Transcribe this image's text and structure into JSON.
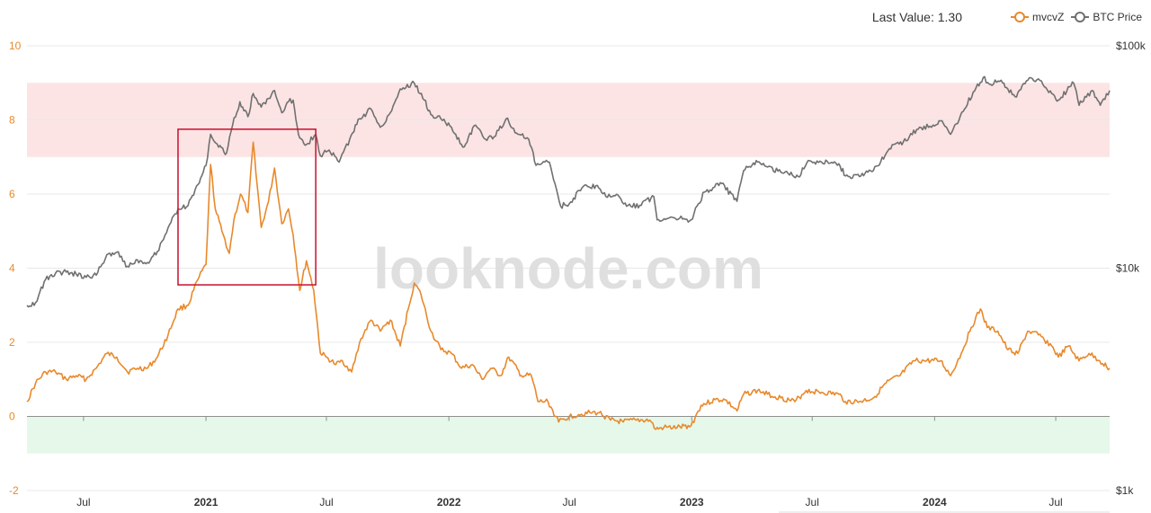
{
  "header": {
    "last_value_text": "Last Value: 1.30"
  },
  "legend": [
    {
      "name": "mvcvZ",
      "color": "#e8892b"
    },
    {
      "name": "BTC Price",
      "color": "#707070"
    }
  ],
  "watermark": "looknode.com",
  "colors": {
    "mvcvz": "#e8892b",
    "btc": "#707070",
    "red_band": "#fce4e4",
    "green_band": "#e5f8ea",
    "highlight_box": "#c8102e",
    "grid": "#e8e8e8",
    "zero_line": "#8f8f8f",
    "left_axis_text": "#e8892b",
    "right_axis_text": "#333333"
  },
  "chart_data": {
    "type": "line",
    "x_axis": {
      "type": "date",
      "range": [
        "2020-04-07",
        "2024-09-20"
      ],
      "ticks": [
        {
          "date": "2020-07-01",
          "label": "Jul",
          "bold": false
        },
        {
          "date": "2021-01-01",
          "label": "2021",
          "bold": true
        },
        {
          "date": "2021-07-01",
          "label": "Jul",
          "bold": false
        },
        {
          "date": "2022-01-01",
          "label": "2022",
          "bold": true
        },
        {
          "date": "2022-07-01",
          "label": "Jul",
          "bold": false
        },
        {
          "date": "2023-01-01",
          "label": "2023",
          "bold": true
        },
        {
          "date": "2023-07-01",
          "label": "Jul",
          "bold": false
        },
        {
          "date": "2024-01-01",
          "label": "2024",
          "bold": true
        },
        {
          "date": "2024-07-01",
          "label": "Jul",
          "bold": false
        }
      ]
    },
    "y_left": {
      "range": [
        -2,
        10
      ],
      "ticks": [
        {
          "value": -2,
          "label": "-2"
        },
        {
          "value": 0,
          "label": "0"
        },
        {
          "value": 2,
          "label": "2"
        },
        {
          "value": 4,
          "label": "4"
        },
        {
          "value": 6,
          "label": "6"
        },
        {
          "value": 8,
          "label": "8"
        },
        {
          "value": 10,
          "label": "10"
        }
      ]
    },
    "y_right": {
      "scale": "log",
      "range": [
        1000,
        100000
      ],
      "ticks": [
        {
          "value": 1000,
          "label": "$1k"
        },
        {
          "value": 10000,
          "label": "$10k"
        },
        {
          "value": 100000,
          "label": "$100k"
        }
      ]
    },
    "bands": [
      {
        "axis": "left",
        "from": 7,
        "to": 9,
        "color": "red"
      },
      {
        "axis": "left",
        "from": -1,
        "to": 0,
        "color": "green"
      }
    ],
    "highlight_box": {
      "x_from": "2020-11-20",
      "x_to": "2021-06-15",
      "y_from": 3.55,
      "y_to": 7.75
    },
    "series": [
      {
        "name": "mvcvZ",
        "axis": "left",
        "points": [
          [
            "2020-04-07",
            0.4
          ],
          [
            "2020-04-20",
            0.9
          ],
          [
            "2020-05-05",
            1.2
          ],
          [
            "2020-05-20",
            1.2
          ],
          [
            "2020-06-05",
            1.0
          ],
          [
            "2020-06-20",
            1.1
          ],
          [
            "2020-07-05",
            1.0
          ],
          [
            "2020-07-20",
            1.3
          ],
          [
            "2020-08-05",
            1.7
          ],
          [
            "2020-08-20",
            1.6
          ],
          [
            "2020-09-05",
            1.2
          ],
          [
            "2020-09-20",
            1.3
          ],
          [
            "2020-10-05",
            1.3
          ],
          [
            "2020-10-20",
            1.6
          ],
          [
            "2020-11-05",
            2.2
          ],
          [
            "2020-11-20",
            2.9
          ],
          [
            "2020-12-05",
            3.0
          ],
          [
            "2020-12-20",
            3.7
          ],
          [
            "2021-01-01",
            4.1
          ],
          [
            "2021-01-08",
            6.8
          ],
          [
            "2021-01-15",
            5.6
          ],
          [
            "2021-01-25",
            5.0
          ],
          [
            "2021-02-05",
            4.4
          ],
          [
            "2021-02-12",
            5.3
          ],
          [
            "2021-02-22",
            6.0
          ],
          [
            "2021-03-05",
            5.5
          ],
          [
            "2021-03-13",
            7.4
          ],
          [
            "2021-03-25",
            5.1
          ],
          [
            "2021-04-05",
            5.8
          ],
          [
            "2021-04-14",
            6.7
          ],
          [
            "2021-04-25",
            5.2
          ],
          [
            "2021-05-05",
            5.6
          ],
          [
            "2021-05-12",
            4.9
          ],
          [
            "2021-05-22",
            3.4
          ],
          [
            "2021-06-01",
            4.2
          ],
          [
            "2021-06-12",
            3.4
          ],
          [
            "2021-06-22",
            1.7
          ],
          [
            "2021-07-01",
            1.6
          ],
          [
            "2021-07-15",
            1.4
          ],
          [
            "2021-07-25",
            1.5
          ],
          [
            "2021-08-08",
            1.2
          ],
          [
            "2021-08-22",
            2.1
          ],
          [
            "2021-09-06",
            2.6
          ],
          [
            "2021-09-20",
            2.3
          ],
          [
            "2021-10-05",
            2.6
          ],
          [
            "2021-10-20",
            1.9
          ],
          [
            "2021-11-01",
            2.9
          ],
          [
            "2021-11-10",
            3.6
          ],
          [
            "2021-11-20",
            3.3
          ],
          [
            "2021-12-05",
            2.3
          ],
          [
            "2021-12-20",
            1.8
          ],
          [
            "2022-01-05",
            1.7
          ],
          [
            "2022-01-20",
            1.3
          ],
          [
            "2022-02-05",
            1.4
          ],
          [
            "2022-02-20",
            1.0
          ],
          [
            "2022-03-05",
            1.3
          ],
          [
            "2022-03-20",
            1.1
          ],
          [
            "2022-04-01",
            1.6
          ],
          [
            "2022-04-20",
            1.1
          ],
          [
            "2022-05-05",
            1.1
          ],
          [
            "2022-05-15",
            0.4
          ],
          [
            "2022-05-30",
            0.4
          ],
          [
            "2022-06-15",
            -0.15
          ],
          [
            "2022-07-01",
            0.0
          ],
          [
            "2022-07-15",
            0.05
          ],
          [
            "2022-08-01",
            0.1
          ],
          [
            "2022-08-15",
            0.1
          ],
          [
            "2022-09-01",
            -0.1
          ],
          [
            "2022-09-20",
            -0.15
          ],
          [
            "2022-10-10",
            -0.1
          ],
          [
            "2022-10-30",
            -0.1
          ],
          [
            "2022-11-08",
            -0.35
          ],
          [
            "2022-11-20",
            -0.3
          ],
          [
            "2022-12-10",
            -0.3
          ],
          [
            "2022-12-31",
            -0.25
          ],
          [
            "2023-01-15",
            0.3
          ],
          [
            "2023-02-05",
            0.45
          ],
          [
            "2023-02-20",
            0.45
          ],
          [
            "2023-03-10",
            0.15
          ],
          [
            "2023-03-20",
            0.6
          ],
          [
            "2023-04-10",
            0.7
          ],
          [
            "2023-04-25",
            0.6
          ],
          [
            "2023-05-15",
            0.5
          ],
          [
            "2023-06-05",
            0.4
          ],
          [
            "2023-06-22",
            0.7
          ],
          [
            "2023-07-15",
            0.65
          ],
          [
            "2023-08-10",
            0.6
          ],
          [
            "2023-08-20",
            0.4
          ],
          [
            "2023-09-10",
            0.4
          ],
          [
            "2023-10-01",
            0.5
          ],
          [
            "2023-10-20",
            0.9
          ],
          [
            "2023-11-10",
            1.1
          ],
          [
            "2023-12-01",
            1.5
          ],
          [
            "2023-12-20",
            1.5
          ],
          [
            "2024-01-10",
            1.5
          ],
          [
            "2024-01-25",
            1.1
          ],
          [
            "2024-02-10",
            1.7
          ],
          [
            "2024-02-25",
            2.4
          ],
          [
            "2024-03-10",
            2.9
          ],
          [
            "2024-03-20",
            2.4
          ],
          [
            "2024-04-05",
            2.3
          ],
          [
            "2024-04-20",
            1.8
          ],
          [
            "2024-05-05",
            1.7
          ],
          [
            "2024-05-20",
            2.3
          ],
          [
            "2024-06-05",
            2.2
          ],
          [
            "2024-06-25",
            1.9
          ],
          [
            "2024-07-05",
            1.6
          ],
          [
            "2024-07-20",
            1.9
          ],
          [
            "2024-08-05",
            1.5
          ],
          [
            "2024-08-20",
            1.7
          ],
          [
            "2024-09-05",
            1.5
          ],
          [
            "2024-09-20",
            1.3
          ]
        ]
      },
      {
        "name": "BTC Price",
        "axis": "right",
        "points": [
          [
            "2020-04-07",
            6800
          ],
          [
            "2020-04-20",
            7000
          ],
          [
            "2020-05-05",
            8900
          ],
          [
            "2020-05-20",
            9500
          ],
          [
            "2020-06-05",
            9600
          ],
          [
            "2020-06-20",
            9400
          ],
          [
            "2020-07-05",
            9100
          ],
          [
            "2020-07-20",
            9300
          ],
          [
            "2020-08-05",
            11500
          ],
          [
            "2020-08-20",
            11800
          ],
          [
            "2020-09-05",
            10200
          ],
          [
            "2020-09-20",
            10900
          ],
          [
            "2020-10-05",
            10600
          ],
          [
            "2020-10-20",
            11900
          ],
          [
            "2020-11-05",
            15200
          ],
          [
            "2020-11-20",
            18500
          ],
          [
            "2020-12-05",
            19100
          ],
          [
            "2020-12-20",
            23800
          ],
          [
            "2021-01-01",
            29000
          ],
          [
            "2021-01-08",
            40000
          ],
          [
            "2021-01-20",
            35000
          ],
          [
            "2021-02-01",
            33000
          ],
          [
            "2021-02-10",
            44000
          ],
          [
            "2021-02-21",
            56000
          ],
          [
            "2021-03-05",
            48000
          ],
          [
            "2021-03-13",
            61000
          ],
          [
            "2021-03-25",
            53000
          ],
          [
            "2021-04-05",
            58000
          ],
          [
            "2021-04-14",
            63000
          ],
          [
            "2021-04-25",
            50000
          ],
          [
            "2021-05-05",
            56000
          ],
          [
            "2021-05-12",
            57000
          ],
          [
            "2021-05-20",
            40000
          ],
          [
            "2021-06-01",
            36000
          ],
          [
            "2021-06-15",
            40000
          ],
          [
            "2021-06-22",
            32000
          ],
          [
            "2021-07-05",
            34000
          ],
          [
            "2021-07-20",
            30000
          ],
          [
            "2021-08-05",
            38000
          ],
          [
            "2021-08-20",
            47000
          ],
          [
            "2021-09-06",
            52000
          ],
          [
            "2021-09-20",
            43000
          ],
          [
            "2021-10-05",
            50000
          ],
          [
            "2021-10-20",
            64000
          ],
          [
            "2021-11-10",
            68000
          ],
          [
            "2021-11-25",
            57000
          ],
          [
            "2021-12-05",
            49000
          ],
          [
            "2021-12-20",
            47000
          ],
          [
            "2022-01-05",
            43000
          ],
          [
            "2022-01-22",
            35000
          ],
          [
            "2022-02-10",
            44000
          ],
          [
            "2022-02-25",
            38000
          ],
          [
            "2022-03-10",
            39000
          ],
          [
            "2022-03-28",
            47000
          ],
          [
            "2022-04-15",
            40000
          ],
          [
            "2022-05-01",
            38000
          ],
          [
            "2022-05-12",
            29000
          ],
          [
            "2022-06-01",
            30000
          ],
          [
            "2022-06-18",
            19000
          ],
          [
            "2022-07-01",
            19500
          ],
          [
            "2022-07-20",
            23000
          ],
          [
            "2022-08-10",
            23500
          ],
          [
            "2022-08-25",
            21000
          ],
          [
            "2022-09-10",
            21500
          ],
          [
            "2022-09-25",
            19000
          ],
          [
            "2022-10-15",
            19200
          ],
          [
            "2022-11-05",
            21000
          ],
          [
            "2022-11-10",
            16500
          ],
          [
            "2022-12-01",
            17000
          ],
          [
            "2022-12-31",
            16500
          ],
          [
            "2023-01-20",
            22000
          ],
          [
            "2023-02-15",
            24000
          ],
          [
            "2023-03-10",
            20000
          ],
          [
            "2023-03-20",
            27500
          ],
          [
            "2023-04-10",
            30000
          ],
          [
            "2023-04-25",
            28500
          ],
          [
            "2023-05-15",
            27000
          ],
          [
            "2023-06-10",
            25800
          ],
          [
            "2023-06-25",
            30500
          ],
          [
            "2023-07-15",
            30000
          ],
          [
            "2023-08-10",
            29500
          ],
          [
            "2023-08-20",
            26000
          ],
          [
            "2023-09-10",
            25800
          ],
          [
            "2023-10-01",
            27500
          ],
          [
            "2023-10-25",
            34500
          ],
          [
            "2023-11-15",
            37000
          ],
          [
            "2023-12-05",
            42000
          ],
          [
            "2023-12-25",
            43500
          ],
          [
            "2024-01-10",
            46000
          ],
          [
            "2024-01-25",
            40000
          ],
          [
            "2024-02-15",
            52000
          ],
          [
            "2024-02-28",
            62000
          ],
          [
            "2024-03-14",
            72000
          ],
          [
            "2024-03-25",
            67000
          ],
          [
            "2024-04-10",
            70000
          ],
          [
            "2024-04-20",
            64000
          ],
          [
            "2024-05-01",
            59000
          ],
          [
            "2024-05-20",
            70000
          ],
          [
            "2024-06-05",
            71000
          ],
          [
            "2024-06-25",
            61000
          ],
          [
            "2024-07-05",
            57000
          ],
          [
            "2024-07-28",
            68000
          ],
          [
            "2024-08-05",
            54000
          ],
          [
            "2024-08-25",
            63000
          ],
          [
            "2024-09-06",
            54000
          ],
          [
            "2024-09-20",
            63000
          ]
        ]
      }
    ]
  }
}
